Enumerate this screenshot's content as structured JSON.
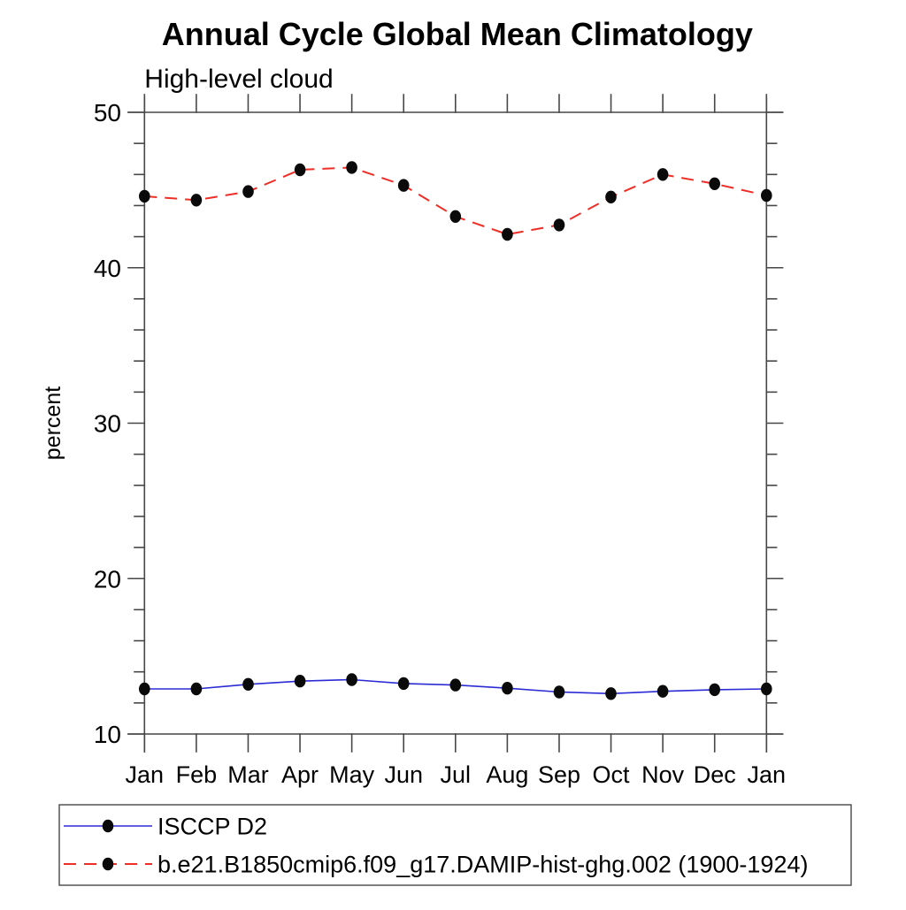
{
  "chart_data": {
    "type": "line",
    "title": "Annual Cycle Global Mean Climatology",
    "subtitle": "High-level cloud",
    "ylabel": "percent",
    "ylim": [
      10,
      50
    ],
    "yticks": [
      10,
      20,
      30,
      40,
      50
    ],
    "y_minor_step": 2,
    "grid": false,
    "legend_position": "bottom-left",
    "axis_color": "#474747",
    "marker_color": "#0a0a0a",
    "x": [
      "Jan",
      "Feb",
      "Mar",
      "Apr",
      "May",
      "Jun",
      "Jul",
      "Aug",
      "Sep",
      "Oct",
      "Nov",
      "Dec",
      "Jan"
    ],
    "series": [
      {
        "name": "ISCCP D2",
        "color": "#2b2bd5",
        "line_style": "solid",
        "marker": "filled-circle",
        "values": [
          12.9,
          12.9,
          13.2,
          13.4,
          13.5,
          13.25,
          13.15,
          12.95,
          12.7,
          12.6,
          12.75,
          12.85,
          12.9
        ]
      },
      {
        "name": "b.e21.B1850cmip6.f09_g17.DAMIP-hist-ghg.002 (1900-1924)",
        "color": "#ee2e27",
        "line_style": "dashed",
        "marker": "filled-circle",
        "values": [
          44.6,
          44.35,
          44.9,
          46.3,
          46.45,
          45.3,
          43.3,
          42.15,
          42.75,
          44.55,
          46.0,
          45.4,
          44.65
        ]
      }
    ]
  }
}
